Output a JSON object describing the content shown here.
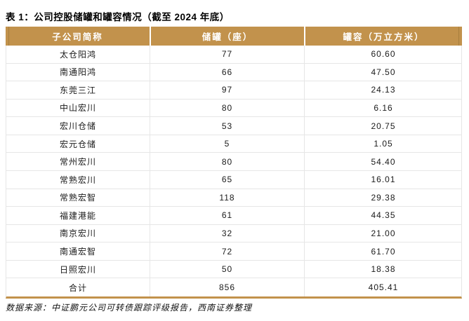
{
  "title": "表 1：公司控股储罐和罐容情况（截至 2024 年底）",
  "footnote": "数据来源：中证鹏元公司可转债跟踪评级报告，西南证券整理",
  "colors": {
    "header_bg": "#C2924C",
    "header_text": "#FFFFFF",
    "grid_line": "#E6E6E6",
    "bottom_rule": "#C2924C"
  },
  "table": {
    "columns": [
      "子公司简称",
      "储罐（座）",
      "罐容（万立方米）"
    ],
    "rows": [
      [
        "太仓阳鸿",
        "77",
        "60.60"
      ],
      [
        "南通阳鸿",
        "66",
        "47.50"
      ],
      [
        "东莞三江",
        "97",
        "24.13"
      ],
      [
        "中山宏川",
        "80",
        "6.16"
      ],
      [
        "宏川仓储",
        "53",
        "20.75"
      ],
      [
        "宏元仓储",
        "5",
        "1.05"
      ],
      [
        "常州宏川",
        "80",
        "54.40"
      ],
      [
        "常熟宏川",
        "65",
        "16.01"
      ],
      [
        "常熟宏智",
        "118",
        "29.38"
      ],
      [
        "福建港能",
        "61",
        "44.35"
      ],
      [
        "南京宏川",
        "32",
        "21.00"
      ],
      [
        "南通宏智",
        "72",
        "61.70"
      ],
      [
        "日照宏川",
        "50",
        "18.38"
      ],
      [
        "合计",
        "856",
        "405.41"
      ]
    ]
  }
}
